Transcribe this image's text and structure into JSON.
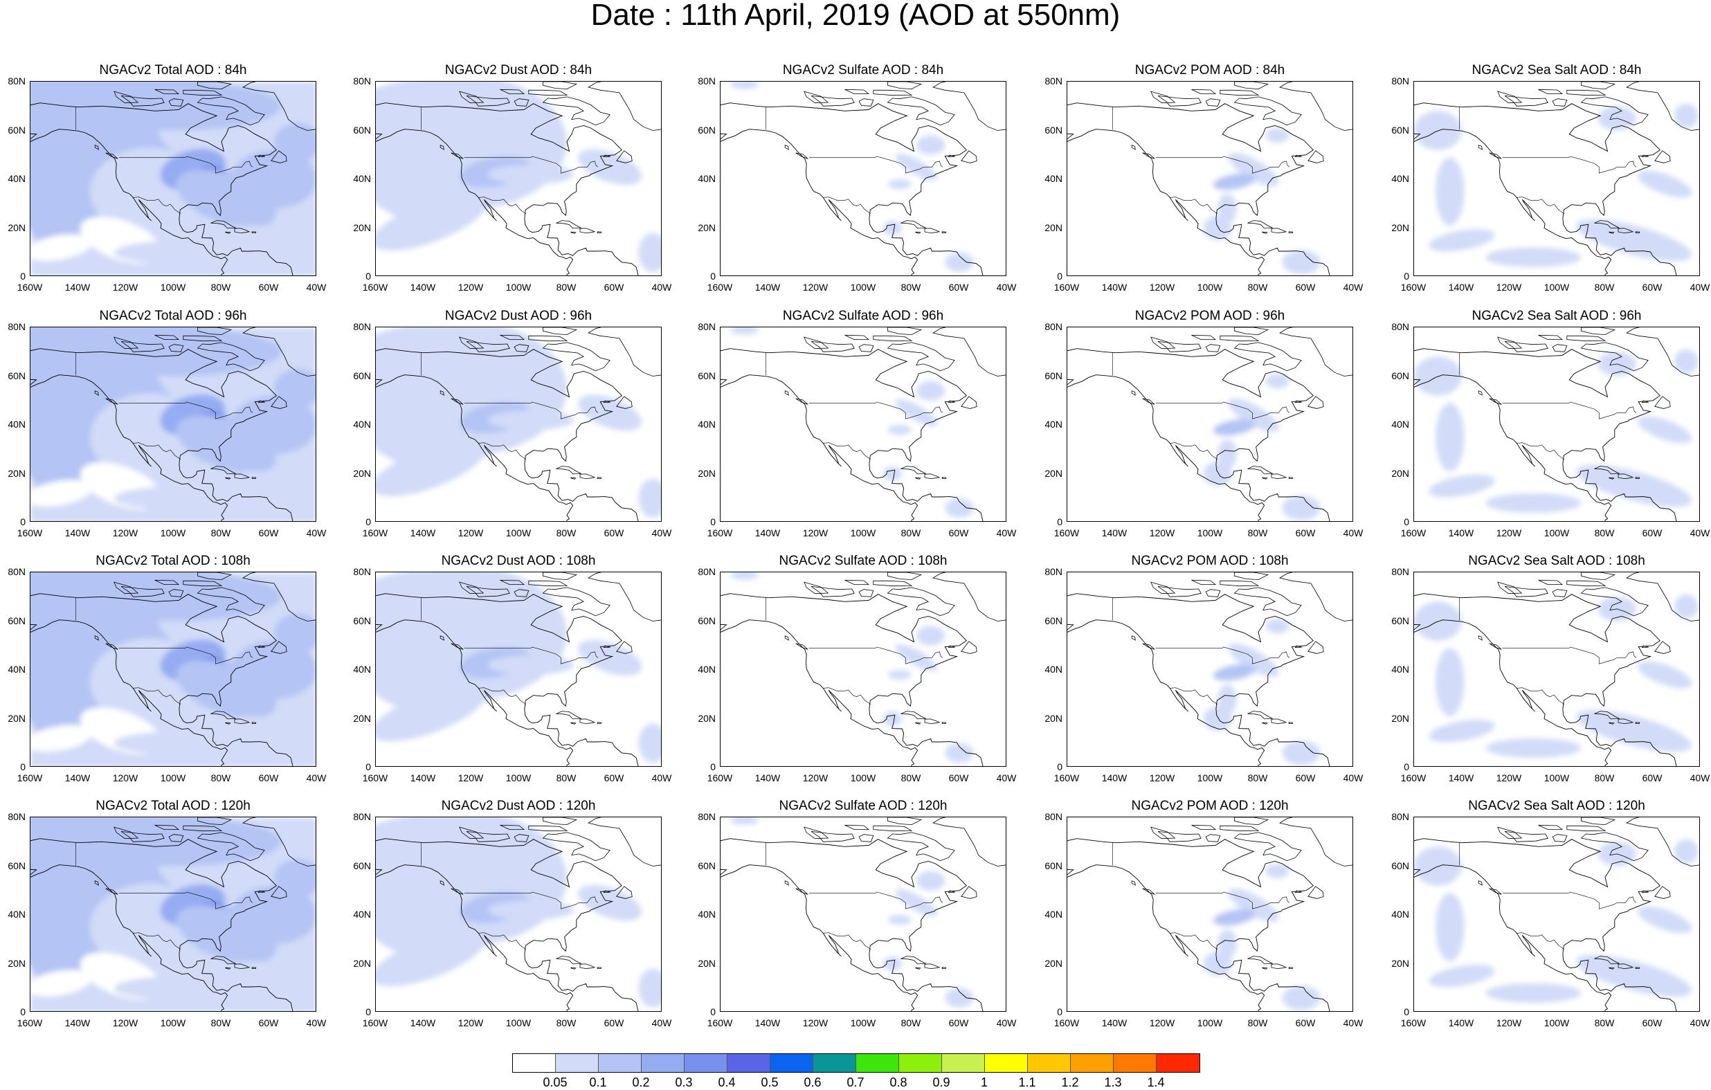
{
  "title": "Date : 11th April, 2019 (AOD at 550nm)",
  "panels": [
    {
      "title": "NGACv2 Total AOD : 84h",
      "species": "total"
    },
    {
      "title": "NGACv2 Dust AOD : 84h",
      "species": "dust"
    },
    {
      "title": "NGACv2 Sulfate AOD : 84h",
      "species": "sulfate"
    },
    {
      "title": "NGACv2 POM AOD : 84h",
      "species": "pom"
    },
    {
      "title": "NGACv2 Sea Salt AOD : 84h",
      "species": "seasalt"
    },
    {
      "title": "NGACv2 Total AOD : 96h",
      "species": "total"
    },
    {
      "title": "NGACv2 Dust AOD : 96h",
      "species": "dust"
    },
    {
      "title": "NGACv2 Sulfate AOD : 96h",
      "species": "sulfate"
    },
    {
      "title": "NGACv2 POM AOD : 96h",
      "species": "pom"
    },
    {
      "title": "NGACv2 Sea Salt AOD : 96h",
      "species": "seasalt"
    },
    {
      "title": "NGACv2 Total AOD : 108h",
      "species": "total"
    },
    {
      "title": "NGACv2 Dust AOD : 108h",
      "species": "dust"
    },
    {
      "title": "NGACv2 Sulfate AOD : 108h",
      "species": "sulfate"
    },
    {
      "title": "NGACv2 POM AOD : 108h",
      "species": "pom"
    },
    {
      "title": "NGACv2 Sea Salt AOD : 108h",
      "species": "seasalt"
    },
    {
      "title": "NGACv2 Total AOD : 120h",
      "species": "total"
    },
    {
      "title": "NGACv2 Dust AOD : 120h",
      "species": "dust"
    },
    {
      "title": "NGACv2 Sulfate AOD : 120h",
      "species": "sulfate"
    },
    {
      "title": "NGACv2 POM AOD : 120h",
      "species": "pom"
    },
    {
      "title": "NGACv2 Sea Salt AOD : 120h",
      "species": "seasalt"
    }
  ],
  "lat_labels": [
    "80N",
    "60N",
    "40N",
    "20N",
    "0"
  ],
  "lon_labels": [
    "160W",
    "140W",
    "120W",
    "100W",
    "80W",
    "60W",
    "40W"
  ],
  "colorbar": {
    "colors": [
      "#ffffff",
      "#d2dcf8",
      "#b4c4f4",
      "#96acf2",
      "#7890ee",
      "#5a64e8",
      "#0a64f0",
      "#0a9696",
      "#3ce60a",
      "#8cf00a",
      "#c8f050",
      "#ffff00",
      "#ffc800",
      "#ffa000",
      "#ff7800",
      "#ff2800"
    ],
    "labels": [
      "0.05",
      "0.1",
      "0.2",
      "0.3",
      "0.4",
      "0.5",
      "0.6",
      "0.7",
      "0.8",
      "0.9",
      "1",
      "1.1",
      "1.2",
      "1.3",
      "1.4"
    ]
  }
}
